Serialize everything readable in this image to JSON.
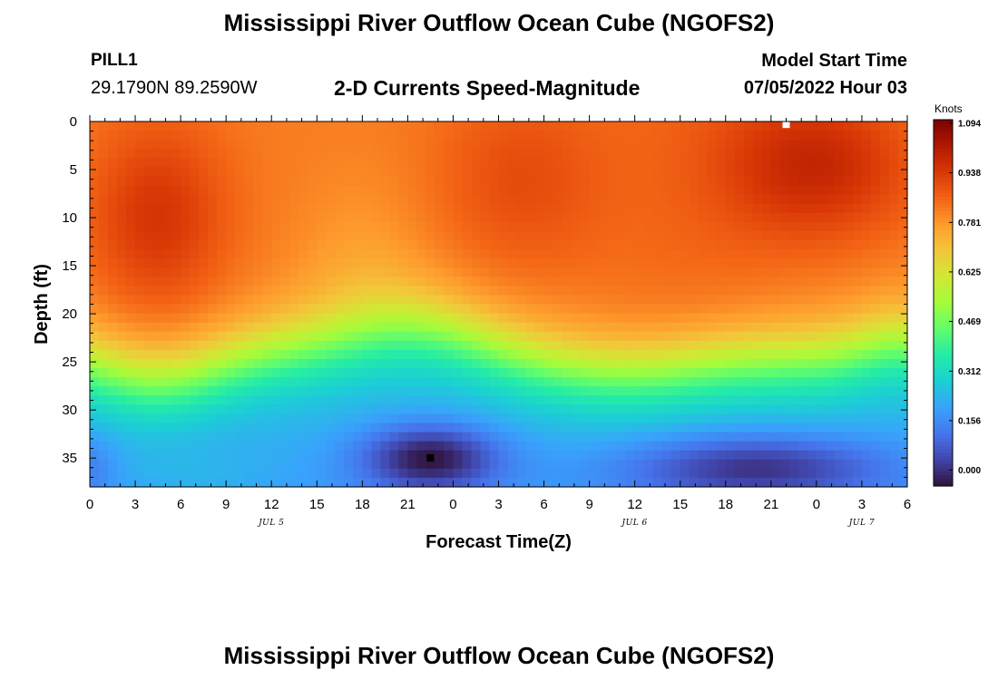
{
  "header": {
    "title": "Mississippi River Outflow Ocean Cube (NGOFS2)",
    "station": "PILL1",
    "coords": "29.1790N  89.2590W",
    "subtitle": "2-D Currents Speed-Magnitude",
    "model_start_label": "Model Start Time",
    "model_start_value": "07/05/2022 Hour 03"
  },
  "footer": {
    "title": "Mississippi River Outflow Ocean Cube (NGOFS2)"
  },
  "chart_data": {
    "type": "heatmap",
    "title": "2-D Currents Speed-Magnitude",
    "xlabel": "Forecast Time(Z)",
    "ylabel": "Depth (ft)",
    "x_range_hours": [
      0,
      54
    ],
    "x_ticks": [
      {
        "hour": 0,
        "label": "0"
      },
      {
        "hour": 3,
        "label": "3"
      },
      {
        "hour": 6,
        "label": "6"
      },
      {
        "hour": 9,
        "label": "9"
      },
      {
        "hour": 12,
        "label": "12"
      },
      {
        "hour": 15,
        "label": "15"
      },
      {
        "hour": 18,
        "label": "18"
      },
      {
        "hour": 21,
        "label": "21"
      },
      {
        "hour": 24,
        "label": "0"
      },
      {
        "hour": 27,
        "label": "3"
      },
      {
        "hour": 30,
        "label": "6"
      },
      {
        "hour": 33,
        "label": "9"
      },
      {
        "hour": 36,
        "label": "12"
      },
      {
        "hour": 39,
        "label": "15"
      },
      {
        "hour": 42,
        "label": "18"
      },
      {
        "hour": 45,
        "label": "21"
      },
      {
        "hour": 48,
        "label": "0"
      },
      {
        "hour": 51,
        "label": "3"
      },
      {
        "hour": 54,
        "label": "6"
      }
    ],
    "date_labels": [
      {
        "hour": 12,
        "label": "JUL 5"
      },
      {
        "hour": 36,
        "label": "JUL 6"
      },
      {
        "hour": 51,
        "label": "JUL 7"
      }
    ],
    "y_range": [
      0,
      38
    ],
    "y_inverted": true,
    "y_ticks": [
      0,
      5,
      10,
      15,
      20,
      25,
      30,
      35
    ],
    "colorbar": {
      "unit": "Knots",
      "min": -0.05,
      "max": 1.105,
      "tick_values": [
        0.0,
        0.156,
        0.312,
        0.469,
        0.625,
        0.781,
        0.938,
        1.094
      ],
      "tick_labels": [
        "0.000",
        "0.156",
        "0.312",
        "0.469",
        "0.625",
        "0.781",
        "0.938",
        "1.094"
      ],
      "colors": [
        "#30123b",
        "#4145ab",
        "#4675ed",
        "#39a2fc",
        "#1bcfd4",
        "#24eca6",
        "#61fc6c",
        "#a4fc3b",
        "#d1e834",
        "#f3c63a",
        "#fe9b2d",
        "#f36315",
        "#d93806",
        "#b11901",
        "#7a0402"
      ]
    },
    "markers": [
      {
        "hour": 22.5,
        "depth": 35,
        "color": "#000000"
      },
      {
        "hour": 46.0,
        "depth": 0.3,
        "color": "#ffffff"
      }
    ]
  }
}
